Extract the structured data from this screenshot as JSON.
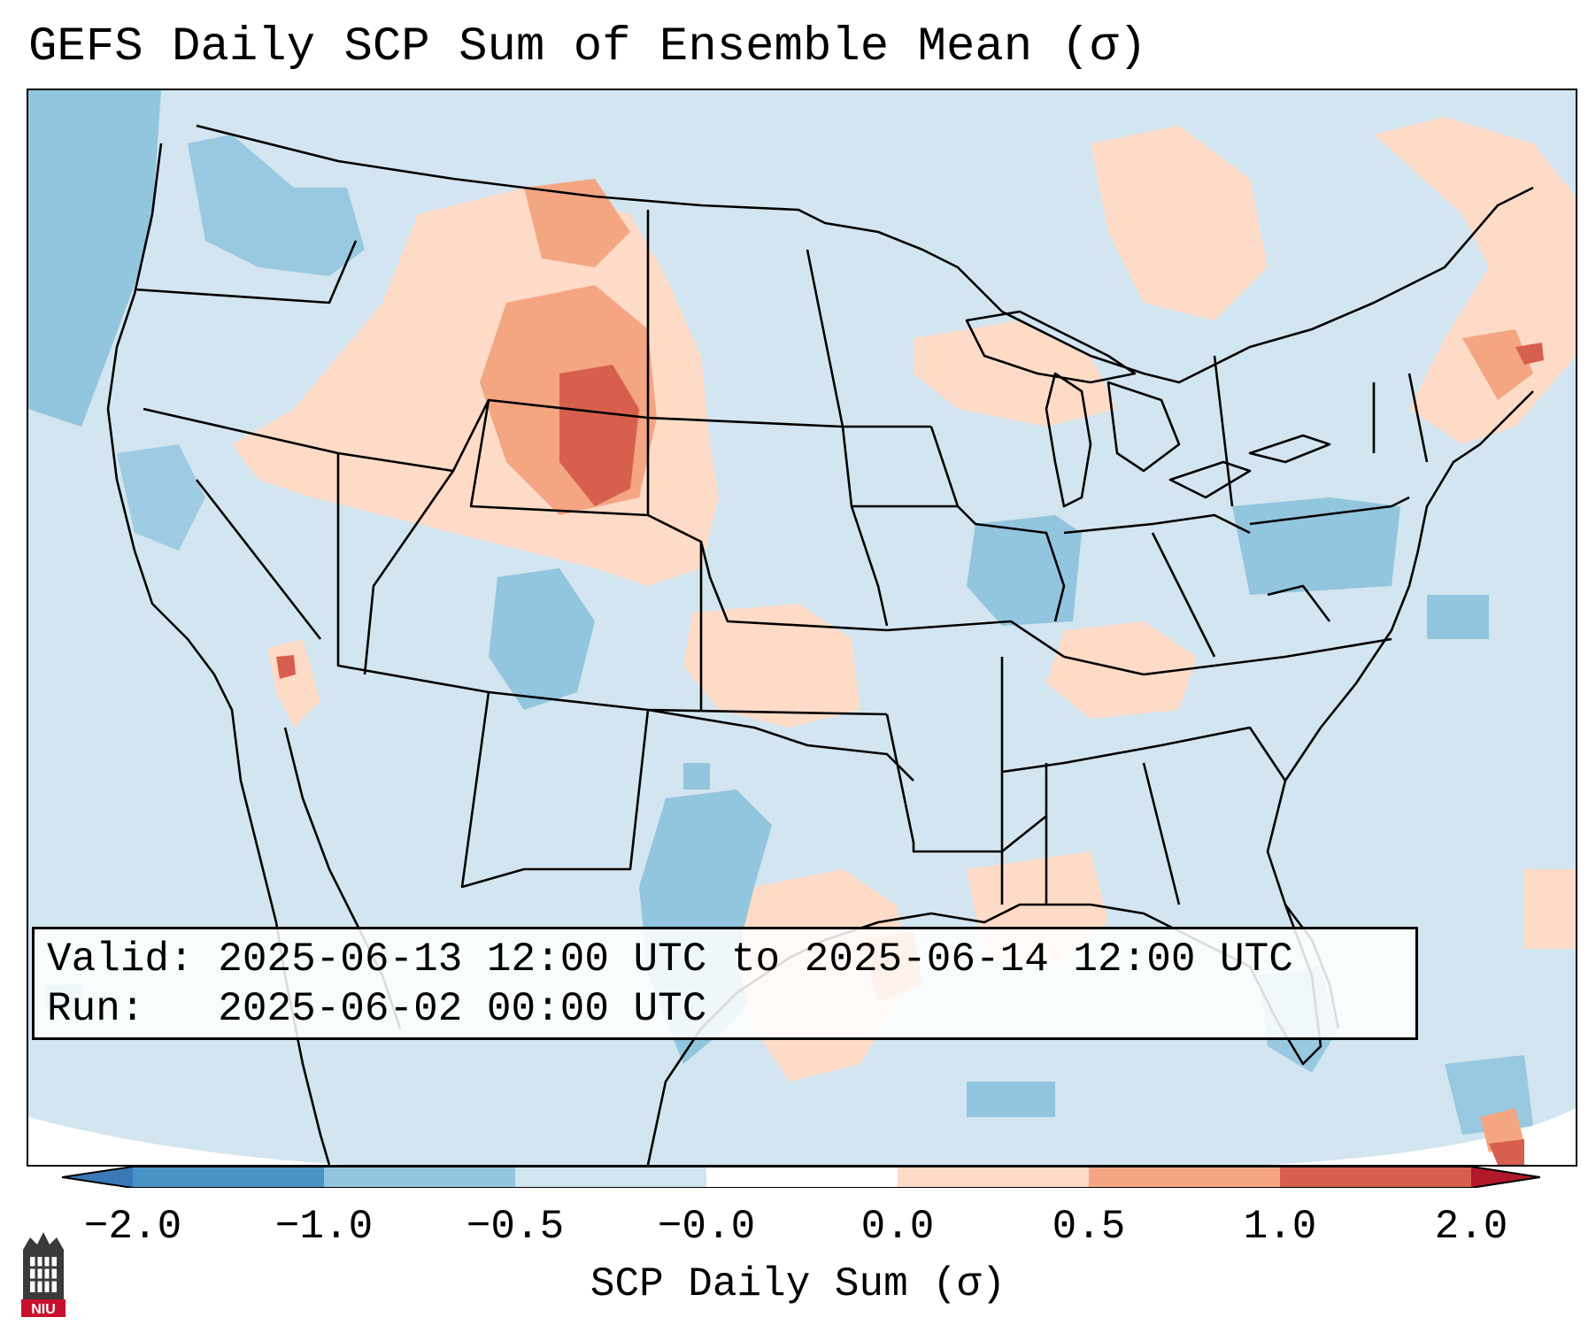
{
  "title": "GEFS Daily SCP Sum of Ensemble Mean (σ)",
  "info": {
    "valid_label": "Valid:",
    "valid_value": "2025-06-13 12:00 UTC to 2025-06-14 12:00 UTC",
    "run_label": "Run:",
    "run_value": "2025-06-02 00:00 UTC"
  },
  "colorbar": {
    "label": "SCP Daily Sum (σ)",
    "ticks": [
      "−2.0",
      "−1.0",
      "−0.5",
      "−0.0",
      "0.0",
      "0.5",
      "1.0",
      "2.0"
    ],
    "bins": [
      {
        "range": "< -2.0",
        "color": "#3a78b7"
      },
      {
        "range": "-2.0 to -1.0",
        "color": "#4a93c6"
      },
      {
        "range": "-1.0 to -0.5",
        "color": "#92c5de"
      },
      {
        "range": "-0.5 to -0.0",
        "color": "#d1e5f0"
      },
      {
        "range": "-0.0 to 0.0",
        "color": "#ffffff"
      },
      {
        "range": "0.0 to 0.5",
        "color": "#fddbc7"
      },
      {
        "range": "0.5 to 1.0",
        "color": "#f4a582"
      },
      {
        "range": "1.0 to 2.0",
        "color": "#d6604d"
      },
      {
        "range": "> 2.0",
        "color": "#b2182b"
      }
    ]
  },
  "logo": {
    "text": "NIU"
  },
  "colors": {
    "neutral_blue": "#d2e5f0",
    "light_blue": "#92c5de",
    "light_red": "#fddbc7",
    "mid_red": "#f4a582",
    "strong_red": "#d6604d",
    "outline": "#000000"
  }
}
